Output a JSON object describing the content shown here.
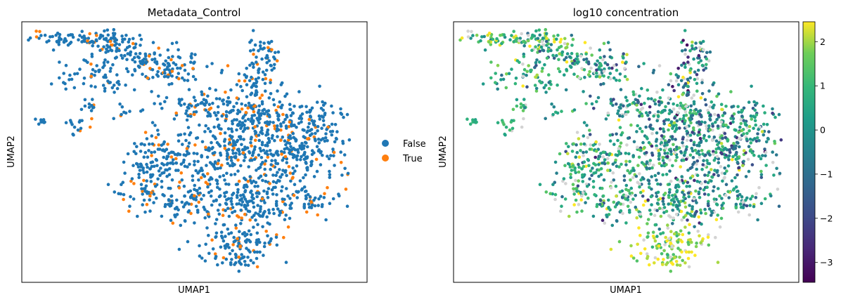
{
  "chart_data": [
    {
      "type": "scatter",
      "title": "Metadata_Control",
      "xlabel": "UMAP1",
      "ylabel": "UMAP2",
      "x_ticks": "none",
      "y_ticks": "none",
      "grid": false,
      "legend_placement": "right",
      "series": [
        {
          "name": "False",
          "color": "#1f77b4"
        },
        {
          "name": "True",
          "color": "#ff7f0e"
        }
      ]
    },
    {
      "type": "scatter",
      "title": "log10 concentration",
      "xlabel": "UMAP1",
      "ylabel": "UMAP2",
      "x_ticks": "none",
      "y_ticks": "none",
      "grid": false,
      "colormap": "viridis",
      "missing_color": "#d3d3d3",
      "colorbar": {
        "range": [
          -3.45,
          2.45
        ],
        "ticks": [
          2,
          1,
          0,
          -1,
          -2,
          -3
        ],
        "tick_labels": [
          "2",
          "1",
          "0",
          "−1",
          "−2",
          "−3"
        ]
      }
    }
  ]
}
